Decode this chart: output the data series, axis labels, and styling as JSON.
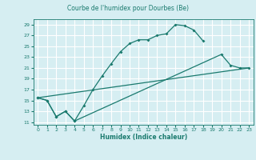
{
  "title": "Courbe de l'humidex pour Dourbes (Be)",
  "xlabel": "Humidex (Indice chaleur)",
  "bg_color": "#d6eef2",
  "grid_color": "#ffffff",
  "line_color": "#1a7a6e",
  "xlim": [
    -0.5,
    23.5
  ],
  "ylim": [
    10.5,
    30
  ],
  "xticks": [
    0,
    1,
    2,
    3,
    4,
    5,
    6,
    7,
    8,
    9,
    10,
    11,
    12,
    13,
    14,
    15,
    16,
    17,
    18,
    19,
    20,
    21,
    22,
    23
  ],
  "yticks": [
    11,
    13,
    15,
    17,
    19,
    21,
    23,
    25,
    27,
    29
  ],
  "line1_x": [
    0,
    1,
    2,
    3,
    4,
    5,
    6,
    7,
    8,
    9,
    10,
    11,
    12,
    13,
    14,
    15,
    16,
    17,
    18
  ],
  "line1_y": [
    15.5,
    15.0,
    12.0,
    13.0,
    11.2,
    14.0,
    17.0,
    19.5,
    21.8,
    24.0,
    25.5,
    26.2,
    26.2,
    27.0,
    27.3,
    29.0,
    28.8,
    28.0,
    26.0
  ],
  "line2_x": [
    0,
    1,
    2,
    3,
    4,
    20,
    21,
    22,
    23
  ],
  "line2_y": [
    15.5,
    15.0,
    12.0,
    13.0,
    11.2,
    23.5,
    21.5,
    21.0,
    21.0
  ],
  "line3_x": [
    0,
    23
  ],
  "line3_y": [
    15.5,
    21.0
  ]
}
